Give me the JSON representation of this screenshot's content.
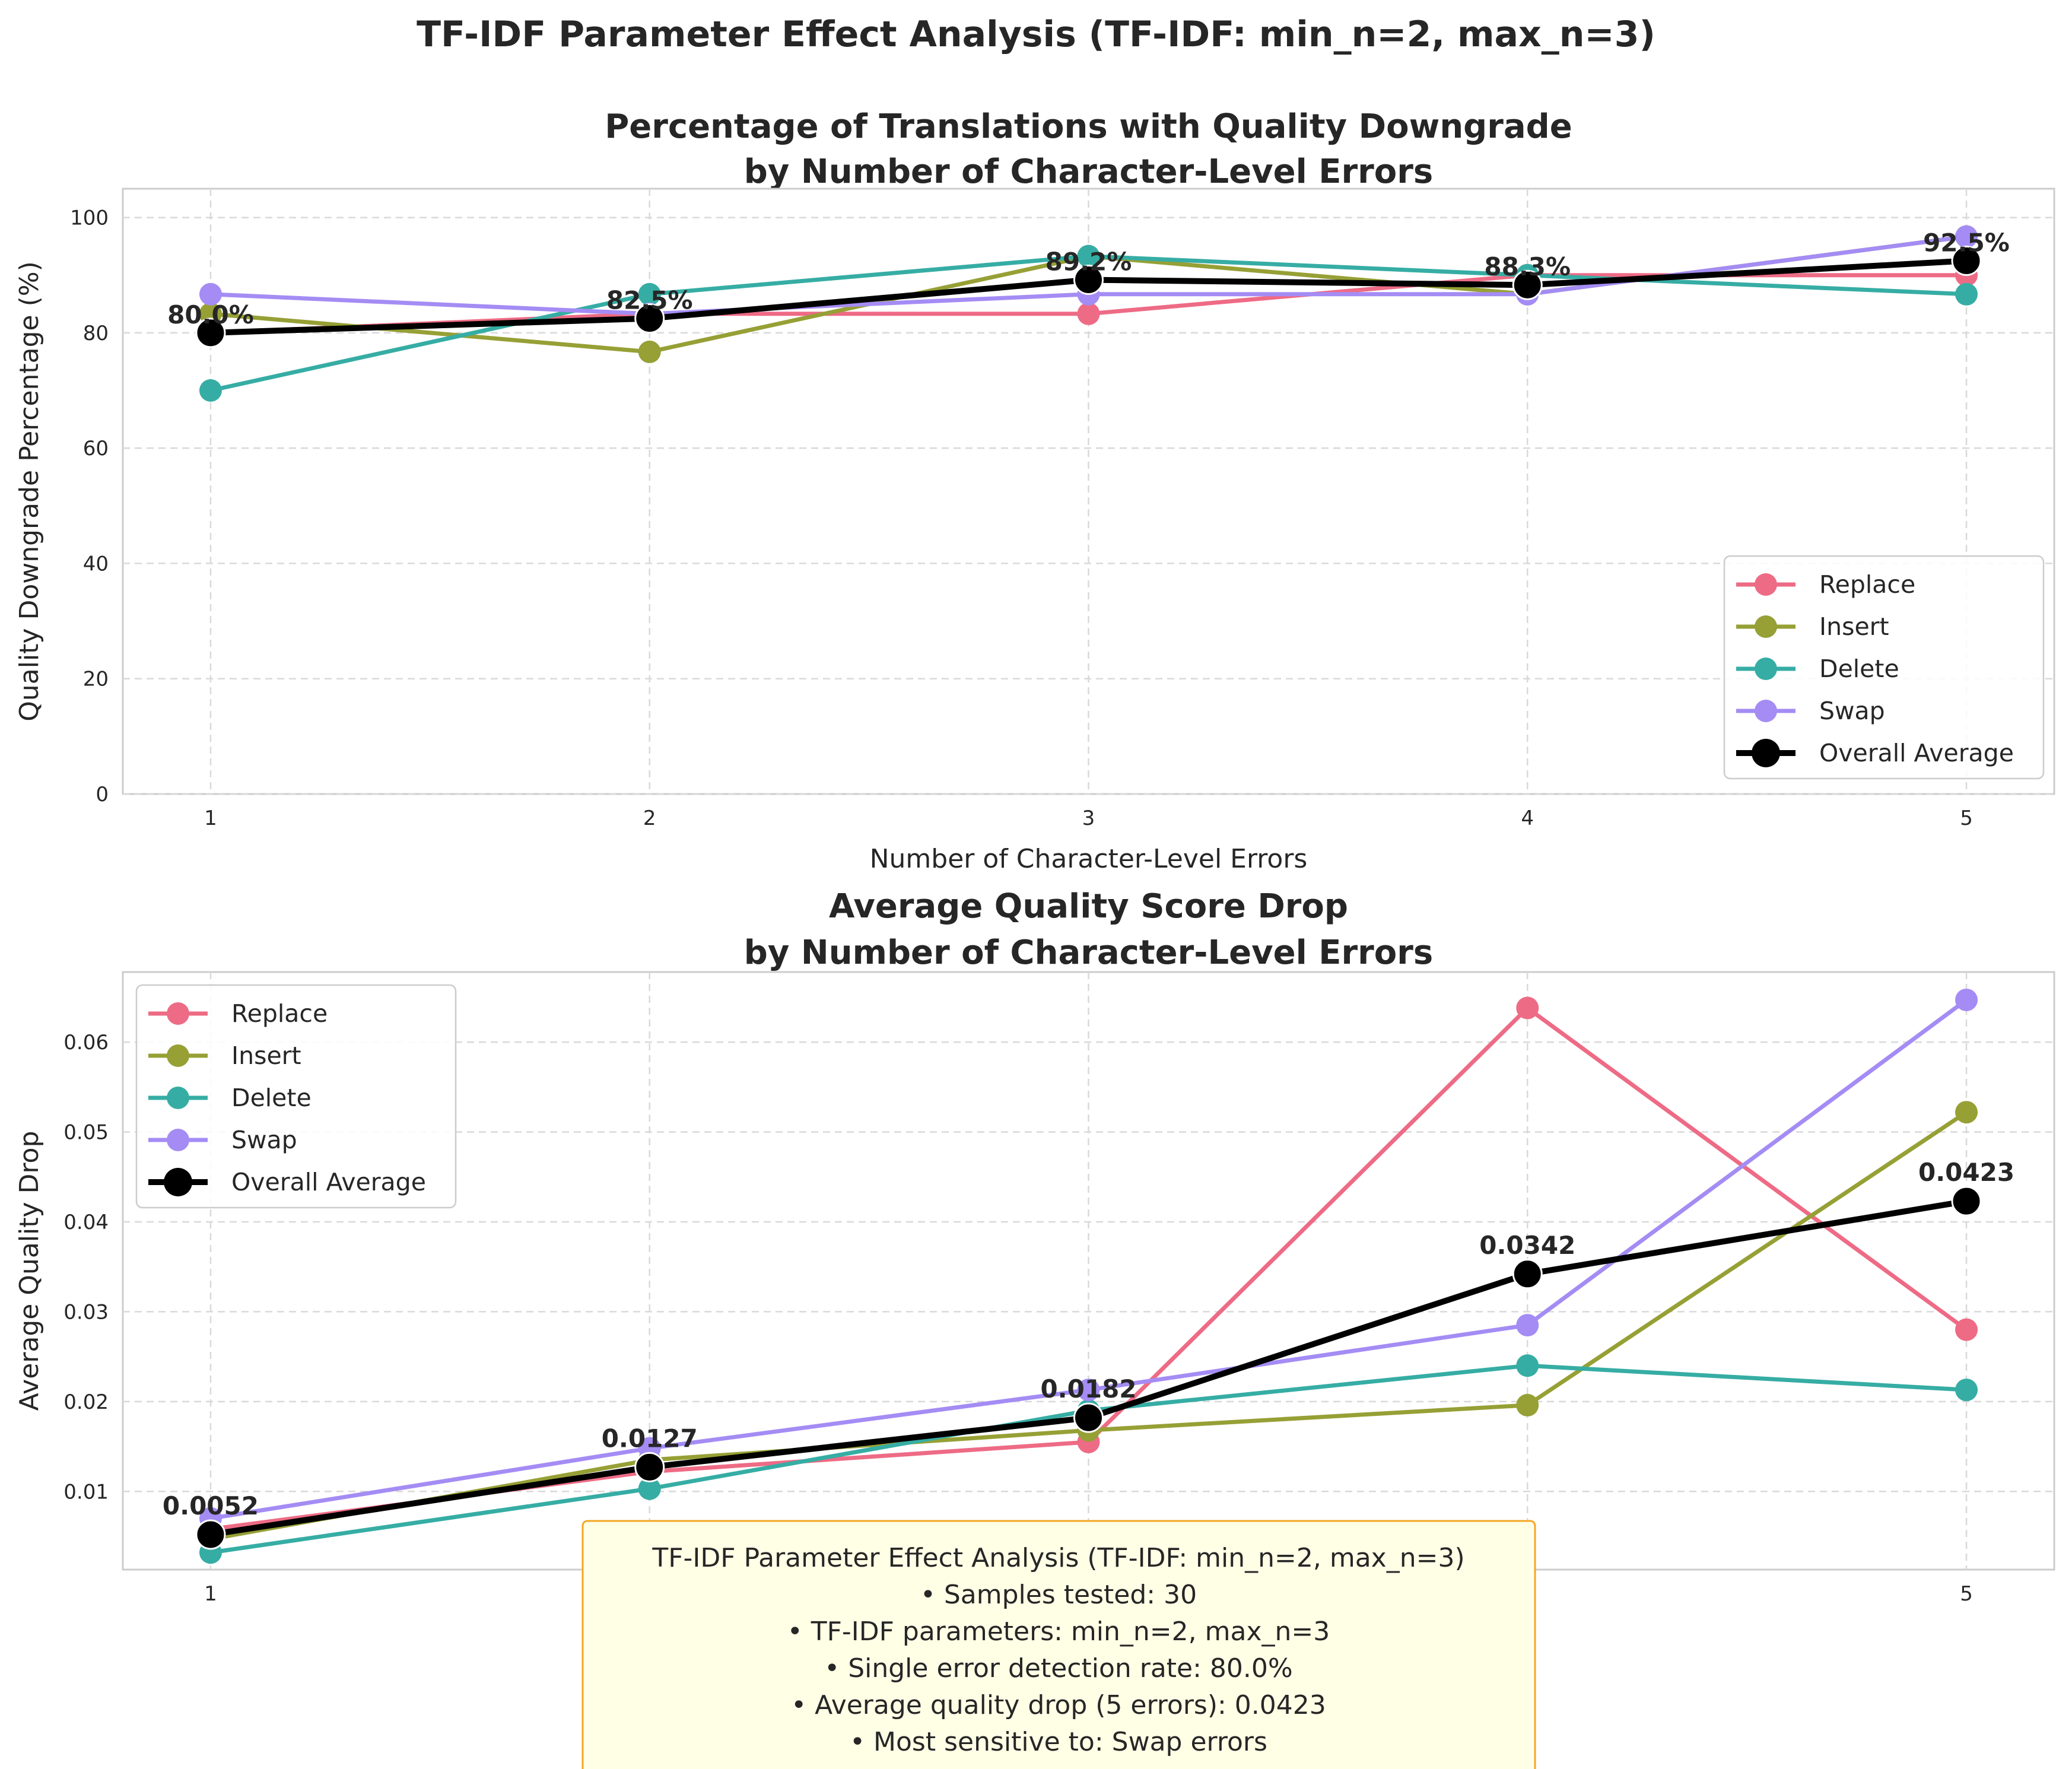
{
  "figure_title": "TF-IDF Parameter Effect Analysis (TF-IDF: min_n=2, max_n=3)",
  "colors": {
    "Replace": "#ee6b85",
    "Insert": "#96a035",
    "Delete": "#36ada4",
    "Swap": "#a48cf4",
    "Overall Average": "#000000",
    "grid": "#d9d9d9",
    "axes_edge": "#cccccc",
    "summary_bg": "#ffffe6",
    "summary_border": "#f5a623"
  },
  "chart_data": [
    {
      "type": "line",
      "title_lines": [
        "Percentage of Translations with Quality Downgrade",
        "by Number of Character-Level Errors"
      ],
      "xlabel": "Number of Character-Level Errors",
      "ylabel": "Quality Downgrade Percentage (%)",
      "x": [
        1,
        2,
        3,
        4,
        5
      ],
      "xlim": [
        0.8,
        5.2
      ],
      "ylim": [
        0,
        105
      ],
      "yticks": [
        0,
        20,
        40,
        60,
        80,
        100
      ],
      "grid": true,
      "legend_position": "lower right",
      "series": [
        {
          "name": "Replace",
          "values": [
            80.0,
            83.3,
            83.3,
            90.0,
            90.0
          ]
        },
        {
          "name": "Insert",
          "values": [
            83.3,
            76.7,
            93.3,
            86.7,
            96.7
          ]
        },
        {
          "name": "Delete",
          "values": [
            70.0,
            86.7,
            93.3,
            90.0,
            86.7
          ]
        },
        {
          "name": "Swap",
          "values": [
            86.7,
            83.3,
            86.7,
            86.7,
            96.7
          ]
        },
        {
          "name": "Overall Average",
          "values": [
            80.0,
            82.5,
            89.2,
            88.3,
            92.5
          ]
        }
      ],
      "data_labels": [
        "80.0%",
        "82.5%",
        "89.2%",
        "88.3%",
        "92.5%"
      ]
    },
    {
      "type": "line",
      "title_lines": [
        "Average Quality Score Drop",
        "by Number of Character-Level Errors"
      ],
      "xlabel": "Number of Character-Level Errors",
      "ylabel": "Average Quality Drop",
      "x": [
        1,
        2,
        3,
        4,
        5
      ],
      "xlim": [
        0.8,
        5.2
      ],
      "ylim": [
        0.0013,
        0.0678
      ],
      "yticks": [
        0.01,
        0.02,
        0.03,
        0.04,
        0.05,
        0.06
      ],
      "grid": true,
      "legend_position": "upper left",
      "series": [
        {
          "name": "Replace",
          "values": [
            0.0058,
            0.0122,
            0.0155,
            0.0638,
            0.028
          ]
        },
        {
          "name": "Insert",
          "values": [
            0.0047,
            0.0135,
            0.0168,
            0.0196,
            0.0522
          ]
        },
        {
          "name": "Delete",
          "values": [
            0.0032,
            0.0103,
            0.019,
            0.024,
            0.0213
          ]
        },
        {
          "name": "Swap",
          "values": [
            0.007,
            0.0148,
            0.0213,
            0.0285,
            0.0647
          ]
        },
        {
          "name": "Overall Average",
          "values": [
            0.0052,
            0.0127,
            0.0182,
            0.0342,
            0.0423
          ]
        }
      ],
      "data_labels": [
        "0.0052",
        "0.0127",
        "0.0182",
        "0.0342",
        "0.0423"
      ]
    }
  ],
  "summary_box": {
    "lines": [
      "TF-IDF Parameter Effect Analysis (TF-IDF: min_n=2, max_n=3)",
      "• Samples tested: 30",
      "• TF-IDF parameters: min_n=2, max_n=3",
      "• Single error detection rate: 80.0%",
      "• Average quality drop (5 errors): 0.0423",
      "• Most sensitive to: Swap errors"
    ]
  }
}
